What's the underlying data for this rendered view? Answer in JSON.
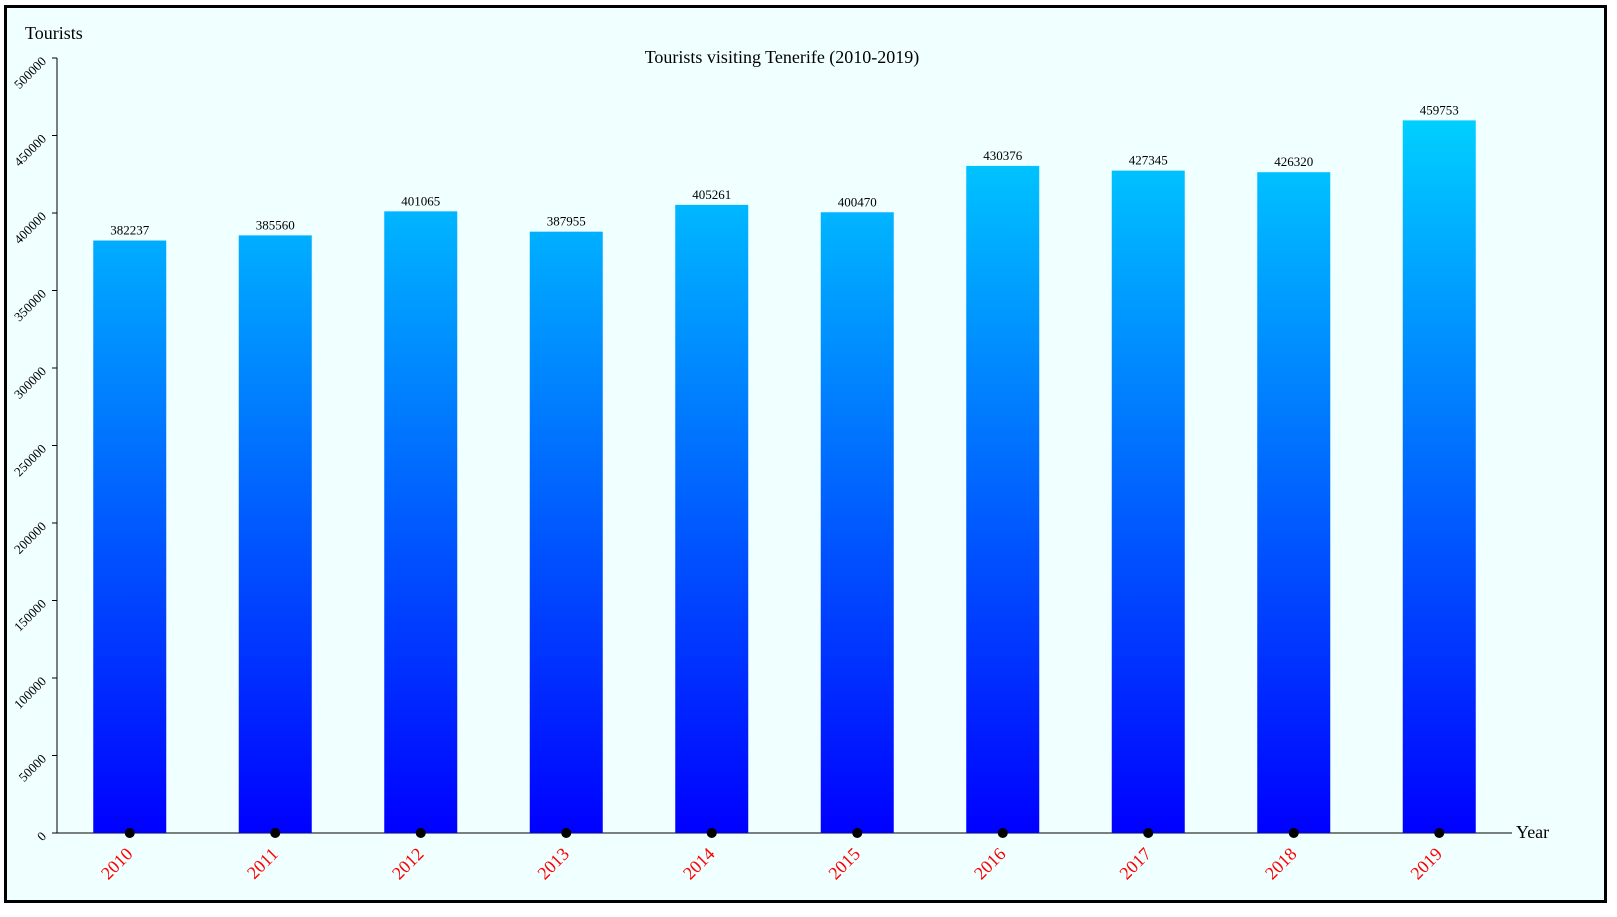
{
  "chart_data": {
    "type": "bar",
    "title": "Tourists visiting Tenerife (2010-2019)",
    "xlabel": "Year",
    "ylabel": "Tourists",
    "categories": [
      "2010",
      "2011",
      "2012",
      "2013",
      "2014",
      "2015",
      "2016",
      "2017",
      "2018",
      "2019"
    ],
    "values": [
      382237,
      385560,
      401065,
      387955,
      405261,
      400470,
      430376,
      427345,
      426320,
      459753
    ],
    "ylim": [
      0,
      500000
    ],
    "yticks": [
      "0",
      "50000",
      "100000",
      "150000",
      "200000",
      "250000",
      "300000",
      "350000",
      "400000",
      "450000",
      "500000"
    ],
    "grid": false,
    "colors": {
      "bar_top": "#00e0ff",
      "bar_bottom": "#0000ff",
      "x_tick_label": "#ff0000",
      "background": "#f0ffff"
    }
  }
}
